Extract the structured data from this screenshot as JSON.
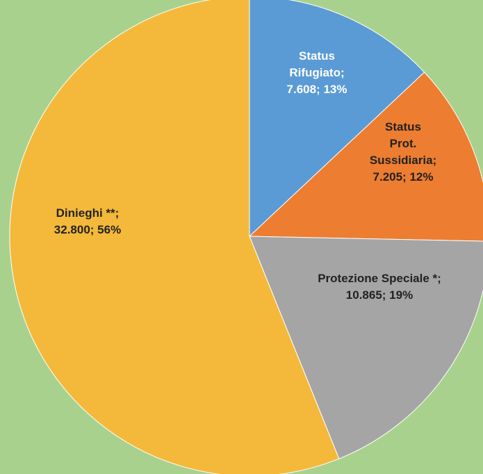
{
  "chart_data": {
    "type": "pie",
    "title": "",
    "legend": "none",
    "slices": [
      {
        "label": "Status Rifugiato",
        "label_lines": [
          "Status",
          "Rifugiato;",
          "7.608; 13%"
        ],
        "value": 7608,
        "percent": 13,
        "color": "#5b9bd5",
        "label_color": "#ffffff"
      },
      {
        "label": "Status Prot. Sussidiaria",
        "label_lines": [
          "Status",
          "Prot.",
          "Sussidiaria;",
          "7.205; 12%"
        ],
        "value": 7205,
        "percent": 12,
        "color": "#ed7d31",
        "label_color": "#222222"
      },
      {
        "label": "Protezione Speciale *",
        "label_lines": [
          "Protezione Speciale *;",
          "10.865; 19%"
        ],
        "value": 10865,
        "percent": 19,
        "color": "#a5a5a5",
        "label_color": "#222222"
      },
      {
        "label": "Dinieghi **",
        "label_lines": [
          "Dinieghi **;",
          "32.800; 56%"
        ],
        "value": 32800,
        "percent": 56,
        "color": "#f4b93a",
        "label_color": "#222222"
      }
    ]
  }
}
